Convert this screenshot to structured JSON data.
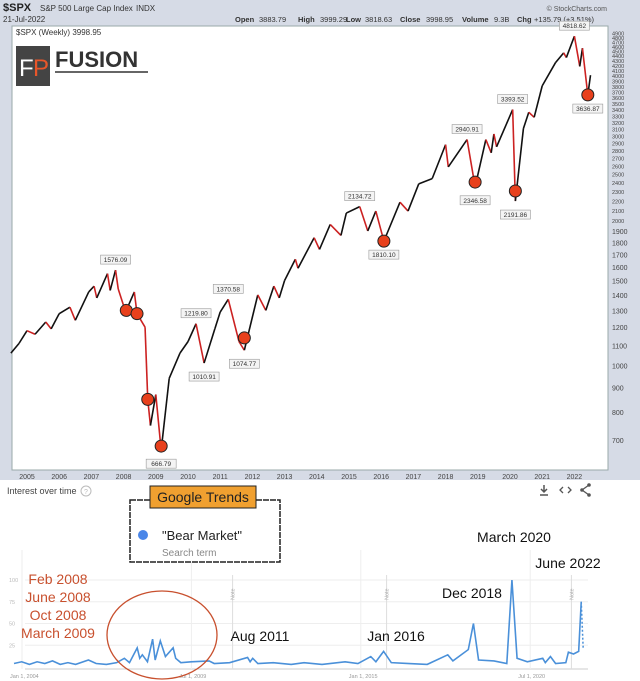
{
  "header": {
    "symbol": "$SPX",
    "name": "S&P 500 Large Cap Index",
    "exchange": "INDX",
    "date": "21-Jul-2022",
    "source": "© StockCharts.com",
    "quote": {
      "open_label": "Open",
      "open": "3883.79",
      "high_label": "High",
      "high": "3999.29",
      "low_label": "Low",
      "low": "3818.63",
      "close_label": "Close",
      "close": "3998.95",
      "volume_label": "Volume",
      "volume": "9.3B",
      "chg_label": "Chg",
      "chg": "+135.79 (+3.51%)"
    },
    "legend": "$SPX (Weekly) 3998.95"
  },
  "logo": {
    "mark": "FP",
    "text": "FUSION"
  },
  "chart_data": [
    {
      "type": "line",
      "title": "$SPX (Weekly) 3998.95",
      "y_scale": "log",
      "ylim": [
        620,
        4950
      ],
      "y_ticks": [
        700,
        800,
        900,
        1000,
        1100,
        1200,
        1300,
        1400,
        1500,
        1600,
        1700,
        1800,
        1900,
        2000,
        2100,
        2200,
        2300,
        2400,
        2500,
        2600,
        2700,
        2800,
        2900,
        3000,
        3100,
        3200,
        3300,
        3400,
        3500,
        3600,
        3700,
        3800,
        3900,
        4000,
        4100,
        4200,
        4300,
        4400,
        4500,
        4600,
        4700,
        4800,
        4900
      ],
      "x_ticks": [
        "2005",
        "2006",
        "2007",
        "2008",
        "2009",
        "2010",
        "2011",
        "2012",
        "2013",
        "2014",
        "2015",
        "2016",
        "2017",
        "2018",
        "2019",
        "2020",
        "2021",
        "2022"
      ],
      "colors": {
        "line": "#111111",
        "down": "#cc2222",
        "marker": "#e8401c"
      },
      "series": [
        {
          "points": [
            [
              "2004-07",
              1060
            ],
            [
              "2004-10",
              1110
            ],
            [
              "2005-01",
              1180
            ],
            [
              "2005-04",
              1160
            ],
            [
              "2005-08",
              1230
            ],
            [
              "2005-10",
              1190
            ],
            [
              "2006-01",
              1280
            ],
            [
              "2006-05",
              1320
            ],
            [
              "2006-07",
              1240
            ],
            [
              "2006-12",
              1420
            ],
            [
              "2007-02",
              1460
            ],
            [
              "2007-03",
              1380
            ],
            [
              "2007-07",
              1550
            ],
            [
              "2007-08",
              1430
            ],
            [
              "2007-10",
              1576.09
            ],
            [
              "2007-11",
              1440
            ],
            [
              "2008-01",
              1330
            ],
            [
              "2008-02",
              1300
            ],
            [
              "2008-05",
              1420
            ],
            [
              "2008-06",
              1280
            ],
            [
              "2008-09",
              1200
            ],
            [
              "2008-10",
              850
            ],
            [
              "2008-11",
              750
            ],
            [
              "2009-01",
              870
            ],
            [
              "2009-03",
              666.79
            ],
            [
              "2009-06",
              940
            ],
            [
              "2009-10",
              1060
            ],
            [
              "2010-01",
              1120
            ],
            [
              "2010-04",
              1219.8
            ],
            [
              "2010-07",
              1010.91
            ],
            [
              "2010-11",
              1190
            ],
            [
              "2011-01",
              1290
            ],
            [
              "2011-04",
              1370.58
            ],
            [
              "2011-08",
              1120
            ],
            [
              "2011-10",
              1074.77
            ],
            [
              "2012-03",
              1400
            ],
            [
              "2012-06",
              1300
            ],
            [
              "2012-09",
              1460
            ],
            [
              "2012-11",
              1380
            ],
            [
              "2013-01",
              1500
            ],
            [
              "2013-05",
              1660
            ],
            [
              "2013-06",
              1590
            ],
            [
              "2013-12",
              1840
            ],
            [
              "2014-02",
              1740
            ],
            [
              "2014-06",
              1960
            ],
            [
              "2014-10",
              1860
            ],
            [
              "2014-12",
              2070
            ],
            [
              "2015-05",
              2134.72
            ],
            [
              "2015-08",
              1900
            ],
            [
              "2015-11",
              2090
            ],
            [
              "2016-02",
              1810.1
            ],
            [
              "2016-08",
              2180
            ],
            [
              "2016-11",
              2090
            ],
            [
              "2017-03",
              2380
            ],
            [
              "2017-08",
              2440
            ],
            [
              "2018-01",
              2870
            ],
            [
              "2018-02",
              2580
            ],
            [
              "2018-09",
              2940.91
            ],
            [
              "2018-12",
              2346.58
            ],
            [
              "2019-04",
              2940
            ],
            [
              "2019-06",
              2760
            ],
            [
              "2019-07",
              3020
            ],
            [
              "2019-08",
              2840
            ],
            [
              "2020-02",
              3393.52
            ],
            [
              "2020-03",
              2191.86
            ],
            [
              "2020-06",
              3100
            ],
            [
              "2020-08",
              3350
            ],
            [
              "2020-10",
              3270
            ],
            [
              "2021-01",
              3800
            ],
            [
              "2021-06",
              4250
            ],
            [
              "2021-09",
              4450
            ],
            [
              "2021-10",
              4350
            ],
            [
              "2022-01",
              4818.62
            ],
            [
              "2022-03",
              4170
            ],
            [
              "2022-04",
              4550
            ],
            [
              "2022-06",
              3636.87
            ],
            [
              "2022-07",
              3998.95
            ]
          ]
        }
      ],
      "annotations": [
        {
          "date": "2007-10",
          "value": 1576.09,
          "label": "1576.09",
          "pos": "above"
        },
        {
          "date": "2009-03",
          "value": 666.79,
          "label": "666.79",
          "pos": "below"
        },
        {
          "date": "2010-04",
          "value": 1219.8,
          "label": "1219.80",
          "pos": "above"
        },
        {
          "date": "2010-07",
          "value": 1010.91,
          "label": "1010.91",
          "pos": "below"
        },
        {
          "date": "2011-04",
          "value": 1370.58,
          "label": "1370.58",
          "pos": "above"
        },
        {
          "date": "2011-10",
          "value": 1074.77,
          "label": "1074.77",
          "pos": "below"
        },
        {
          "date": "2015-05",
          "value": 2134.72,
          "label": "2134.72",
          "pos": "above"
        },
        {
          "date": "2016-02",
          "value": 1810.1,
          "label": "1810.10",
          "pos": "below"
        },
        {
          "date": "2018-09",
          "value": 2940.91,
          "label": "2940.91",
          "pos": "above"
        },
        {
          "date": "2018-12",
          "value": 2346.58,
          "label": "2346.58",
          "pos": "below"
        },
        {
          "date": "2020-02",
          "value": 3393.52,
          "label": "3393.52",
          "pos": "above"
        },
        {
          "date": "2020-03",
          "value": 2191.86,
          "label": "2191.86",
          "pos": "below"
        },
        {
          "date": "2022-01",
          "value": 4818.62,
          "label": "4818.62",
          "pos": "above"
        },
        {
          "date": "2022-06",
          "value": 3636.87,
          "label": "3636.87",
          "pos": "below"
        }
      ],
      "markers": [
        {
          "date": "2008-02",
          "value": 1300
        },
        {
          "date": "2008-06",
          "value": 1280
        },
        {
          "date": "2008-10",
          "value": 850
        },
        {
          "date": "2009-03",
          "value": 680
        },
        {
          "date": "2011-10",
          "value": 1140
        },
        {
          "date": "2016-02",
          "value": 1810
        },
        {
          "date": "2018-12",
          "value": 2400
        },
        {
          "date": "2020-03",
          "value": 2300
        },
        {
          "date": "2022-06",
          "value": 3640
        }
      ]
    },
    {
      "type": "line",
      "title": "Interest over time",
      "ylim": [
        0,
        100
      ],
      "y_ticks": [
        25,
        50,
        75,
        100
      ],
      "x_ticks": [
        "Jan 1, 2004",
        "Jul 1, 2009",
        "Jan 1, 2015",
        "Jul 1, 2020"
      ],
      "grid": true,
      "notes": [
        {
          "date": "2011-01",
          "label": "Note"
        },
        {
          "date": "2016-01",
          "label": "Note"
        },
        {
          "date": "2022-01",
          "label": "Note"
        }
      ],
      "colors": {
        "line": "#4a90d9",
        "legend_dot": "#4a86e8"
      },
      "series": [
        {
          "name": "\"Bear Market\"",
          "sublabel": "Search term",
          "points": [
            [
              "2004-01",
              4
            ],
            [
              "2004-04",
              6
            ],
            [
              "2004-07",
              3
            ],
            [
              "2004-10",
              6
            ],
            [
              "2005-01",
              4
            ],
            [
              "2005-04",
              7
            ],
            [
              "2005-07",
              3
            ],
            [
              "2005-10",
              5
            ],
            [
              "2006-01",
              3
            ],
            [
              "2006-06",
              8
            ],
            [
              "2006-09",
              4
            ],
            [
              "2007-01",
              3
            ],
            [
              "2007-05",
              5
            ],
            [
              "2007-08",
              10
            ],
            [
              "2007-10",
              5
            ],
            [
              "2008-01",
              22
            ],
            [
              "2008-02",
              10
            ],
            [
              "2008-03",
              14
            ],
            [
              "2008-05",
              6
            ],
            [
              "2008-07",
              32
            ],
            [
              "2008-08",
              8
            ],
            [
              "2008-10",
              30
            ],
            [
              "2008-12",
              12
            ],
            [
              "2009-03",
              22
            ],
            [
              "2009-04",
              10
            ],
            [
              "2009-06",
              5
            ],
            [
              "2009-10",
              6
            ],
            [
              "2010-05",
              7
            ],
            [
              "2010-07",
              4
            ],
            [
              "2011-01",
              5
            ],
            [
              "2011-08",
              11
            ],
            [
              "2011-09",
              6
            ],
            [
              "2011-10",
              10
            ],
            [
              "2011-12",
              4
            ],
            [
              "2012-06",
              5
            ],
            [
              "2013-01",
              3
            ],
            [
              "2013-06",
              5
            ],
            [
              "2014-01",
              3
            ],
            [
              "2014-10",
              6
            ],
            [
              "2015-03",
              4
            ],
            [
              "2015-08",
              12
            ],
            [
              "2015-10",
              6
            ],
            [
              "2016-01",
              18
            ],
            [
              "2016-04",
              5
            ],
            [
              "2016-11",
              4
            ],
            [
              "2017-06",
              3
            ],
            [
              "2018-02",
              14
            ],
            [
              "2018-04",
              7
            ],
            [
              "2018-10",
              20
            ],
            [
              "2018-12",
              50
            ],
            [
              "2019-02",
              8
            ],
            [
              "2019-08",
              7
            ],
            [
              "2020-01",
              4
            ],
            [
              "2020-03",
              100
            ],
            [
              "2020-05",
              10
            ],
            [
              "2020-09",
              6
            ],
            [
              "2021-03",
              10
            ],
            [
              "2021-04",
              5
            ],
            [
              "2021-06",
              12
            ],
            [
              "2021-08",
              4
            ],
            [
              "2021-12",
              5
            ],
            [
              "2022-01",
              17
            ],
            [
              "2022-03",
              15
            ],
            [
              "2022-05",
              18
            ],
            [
              "2022-06",
              75
            ]
          ]
        }
      ]
    }
  ],
  "trends": {
    "title": "Interest over time",
    "help_icon": "question-circle-icon",
    "badge": "Google Trends",
    "term": "\"Bear Market\"",
    "term_sub": "Search term",
    "icons": [
      "download-icon",
      "embed-icon",
      "share-icon"
    ],
    "red_labels": [
      "Feb 2008",
      "June 2008",
      "Oct 2008",
      "March 2009"
    ],
    "event_labels": [
      {
        "label": "Aug 2011"
      },
      {
        "label": "Jan 2016"
      },
      {
        "label": "Dec 2018"
      },
      {
        "label": "March 2020"
      },
      {
        "label": "June 2022"
      }
    ],
    "colors": {
      "red_text": "#c8502e",
      "badge_bg": "#f0a030"
    }
  }
}
